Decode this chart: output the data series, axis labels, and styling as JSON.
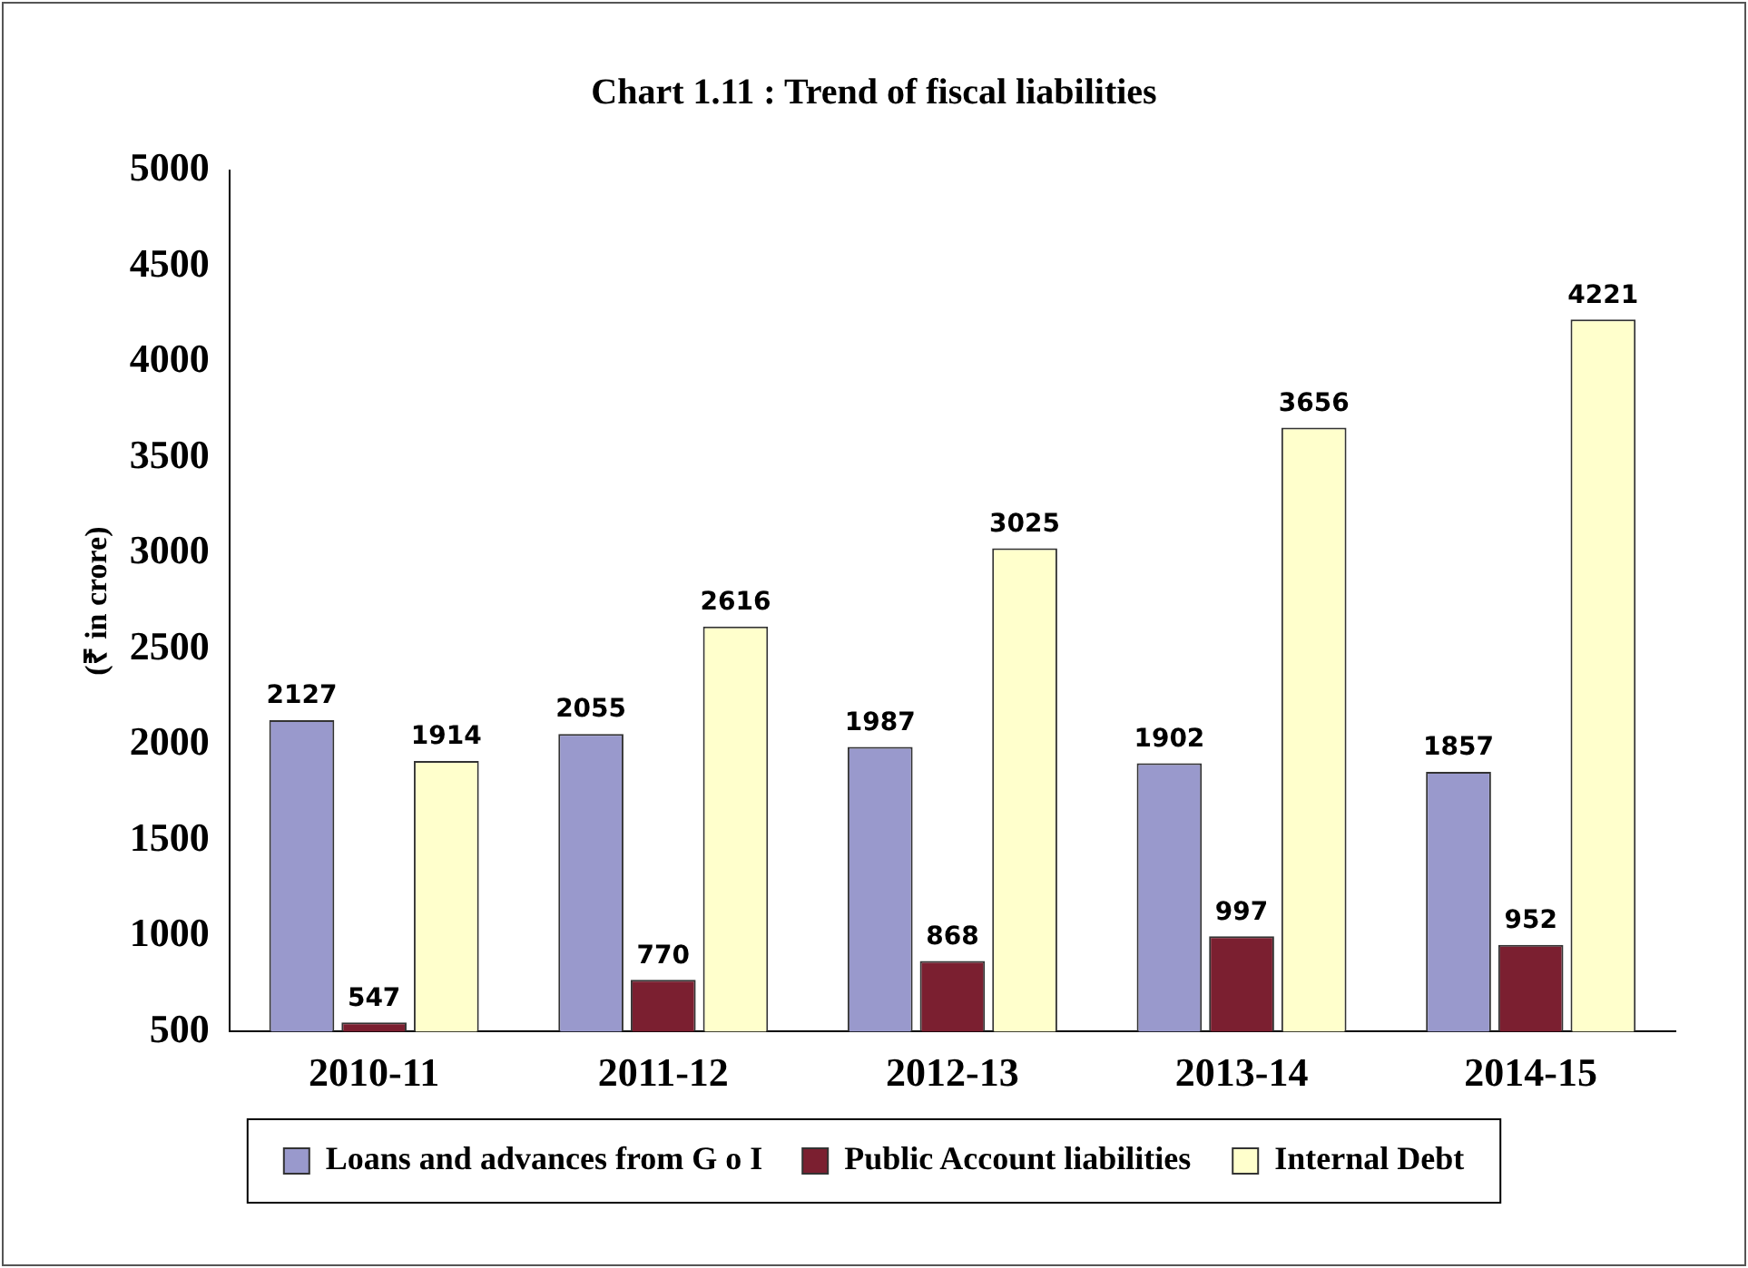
{
  "chart_data": {
    "type": "bar",
    "title": "Chart 1.11 : Trend of fiscal liabilities",
    "ylabel": "(₹ in crore)",
    "categories": [
      "2010-11",
      "2011-12",
      "2012-13",
      "2013-14",
      "2014-15"
    ],
    "series": [
      {
        "name": "Loans and advances from G o I",
        "color": "#9999cc",
        "values": [
          2127,
          2055,
          1987,
          1902,
          1857
        ]
      },
      {
        "name": "Public Account liabilities",
        "color": "#7b1f30",
        "values": [
          547,
          770,
          868,
          997,
          952
        ]
      },
      {
        "name": "Internal Debt",
        "color": "#ffffcc",
        "values": [
          1914,
          2616,
          3025,
          3656,
          4221
        ]
      }
    ],
    "ylim": [
      500,
      5000
    ],
    "yticks": [
      500,
      1000,
      1500,
      2000,
      2500,
      3000,
      3500,
      4000,
      4500,
      5000
    ],
    "grid": false,
    "legend": "bottom",
    "data_labels": true
  }
}
